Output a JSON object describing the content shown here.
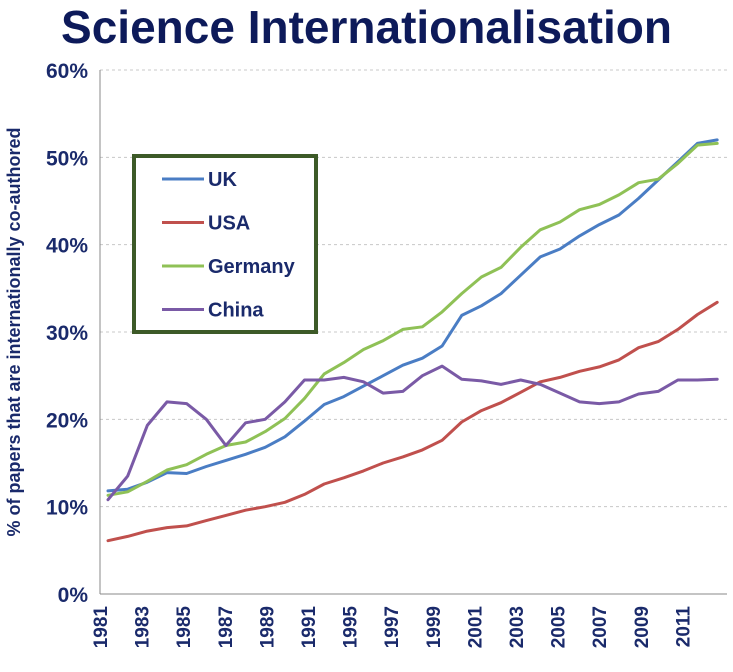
{
  "chart_data": {
    "type": "line",
    "title": "Science Internationalisation",
    "ylabel": "% of papers that are internationally co-authored",
    "xlabel": "",
    "ylim": [
      0,
      60
    ],
    "xlim": [
      1981,
      2012.5
    ],
    "grid": true,
    "legend_position": "top-left",
    "y_ticks": [
      "0%",
      "10%",
      "20%",
      "30%",
      "40%",
      "50%",
      "60%"
    ],
    "x_ticks": [
      "1981",
      "1983",
      "1985",
      "1987",
      "1989",
      "1991",
      "1995",
      "1997",
      "1999",
      "2001",
      "2003",
      "2005",
      "2007",
      "2009",
      "2011"
    ],
    "series": [
      {
        "name": "UK",
        "color": "#4a7dc4",
        "x": [
          1981,
          1982,
          1983,
          1984,
          1985,
          1986,
          1987,
          1988,
          1989,
          1990,
          1991,
          1992,
          1993,
          1994,
          1995,
          1996,
          1997,
          1998,
          1999,
          2000,
          2001,
          2002,
          2003,
          2004,
          2005,
          2006,
          2007,
          2008,
          2009,
          2010,
          2011,
          2012
        ],
        "values": [
          11.8,
          12.0,
          12.8,
          13.9,
          13.8,
          14.6,
          15.3,
          16.0,
          16.8,
          18.0,
          19.8,
          21.7,
          22.6,
          23.8,
          25.0,
          26.2,
          27.0,
          28.4,
          31.9,
          33.0,
          34.4,
          36.5,
          38.6,
          39.5,
          41.0,
          42.3,
          43.4,
          45.3,
          47.4,
          49.5,
          51.6,
          52.0
        ]
      },
      {
        "name": "USA",
        "color": "#c0504d",
        "x": [
          1981,
          1982,
          1983,
          1984,
          1985,
          1986,
          1987,
          1988,
          1989,
          1990,
          1991,
          1992,
          1993,
          1994,
          1995,
          1996,
          1997,
          1998,
          1999,
          2000,
          2001,
          2002,
          2003,
          2004,
          2005,
          2006,
          2007,
          2008,
          2009,
          2010,
          2011,
          2012
        ],
        "values": [
          6.1,
          6.6,
          7.2,
          7.6,
          7.8,
          8.4,
          9.0,
          9.6,
          10.0,
          10.5,
          11.4,
          12.6,
          13.3,
          14.1,
          15.0,
          15.7,
          16.5,
          17.6,
          19.7,
          21.0,
          21.9,
          23.1,
          24.3,
          24.8,
          25.5,
          26.0,
          26.8,
          28.2,
          28.9,
          30.3,
          32.0,
          33.4
        ]
      },
      {
        "name": "Germany",
        "color": "#8fc156",
        "x": [
          1981,
          1982,
          1983,
          1984,
          1985,
          1986,
          1987,
          1988,
          1989,
          1990,
          1991,
          1992,
          1993,
          1994,
          1995,
          1996,
          1997,
          1998,
          1999,
          2000,
          2001,
          2002,
          2003,
          2004,
          2005,
          2006,
          2007,
          2008,
          2009,
          2010,
          2011,
          2012
        ],
        "values": [
          11.3,
          11.7,
          12.9,
          14.2,
          14.8,
          16.0,
          17.0,
          17.4,
          18.6,
          20.1,
          22.4,
          25.2,
          26.5,
          28.0,
          29.0,
          30.3,
          30.6,
          32.3,
          34.4,
          36.3,
          37.4,
          39.7,
          41.7,
          42.6,
          44.0,
          44.6,
          45.7,
          47.1,
          47.5,
          49.3,
          51.4,
          51.6
        ]
      },
      {
        "name": "China",
        "color": "#7a5aa6",
        "x": [
          1981,
          1982,
          1983,
          1984,
          1985,
          1986,
          1987,
          1988,
          1989,
          1990,
          1991,
          1992,
          1993,
          1994,
          1995,
          1996,
          1997,
          1998,
          1999,
          2000,
          2001,
          2002,
          2003,
          2004,
          2005,
          2006,
          2007,
          2008,
          2009,
          2010,
          2011,
          2012
        ],
        "values": [
          10.8,
          13.5,
          19.3,
          22.0,
          21.8,
          20.0,
          17.0,
          19.6,
          20.0,
          22.0,
          24.5,
          24.5,
          24.8,
          24.3,
          23.0,
          23.2,
          25.0,
          26.1,
          24.6,
          24.4,
          24.0,
          24.5,
          24.0,
          23.0,
          22.0,
          21.8,
          22.0,
          22.9,
          23.2,
          24.5,
          24.5,
          24.6
        ]
      }
    ]
  }
}
